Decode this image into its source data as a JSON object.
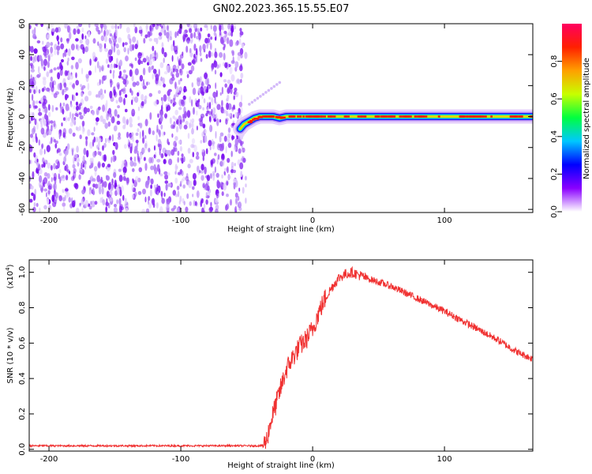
{
  "title": "GN02.2023.365.15.55.E07",
  "colors": {
    "snr_line": "#f03030",
    "noise_purple": "#7a10f0",
    "axis": "#000000"
  },
  "chart_data": [
    {
      "type": "heatmap",
      "xlabel": "Height of straight line (km)",
      "ylabel": "Frequency (Hz)",
      "xlim": [
        -215,
        167
      ],
      "ylim": [
        -62,
        60
      ],
      "xticks": [
        -200,
        -100,
        0,
        100
      ],
      "yticks": [
        -60,
        -40,
        -20,
        0,
        20,
        40,
        60
      ],
      "xtick_labels": [
        "-200",
        "-100",
        "0",
        "100"
      ],
      "ytick_labels": [
        "-60",
        "-40",
        "-20",
        "0",
        "20",
        "40",
        "60"
      ],
      "noise_region_x": [
        -215,
        -53
      ],
      "signal_trace": {
        "x": [
          -55,
          -52,
          -48,
          -44,
          -40,
          -35,
          -30,
          -25,
          -20,
          -10,
          0,
          20,
          40,
          60,
          80,
          100,
          120,
          140,
          167
        ],
        "freq": [
          -8,
          -5,
          -3,
          -1,
          0,
          0,
          0,
          -1,
          0,
          0,
          0,
          0,
          0,
          0,
          0,
          0,
          0,
          0,
          0
        ]
      },
      "harmonic_trace": {
        "x": [
          -48,
          -25
        ],
        "freq": [
          8,
          22
        ]
      },
      "colorbar": {
        "label": "Normalized spectral amplitude",
        "range": [
          0,
          1
        ],
        "ticks": [
          0.0,
          0.2,
          0.4,
          0.6,
          0.8
        ],
        "tick_labels": [
          "0.0",
          "0.2",
          "0.4",
          "0.6",
          "0.8"
        ],
        "colormap": [
          "#ffffff",
          "#8a00ff",
          "#0000ff",
          "#00c8ff",
          "#00ff40",
          "#c8ff00",
          "#ffa000",
          "#ff2000",
          "#ff0060"
        ]
      }
    },
    {
      "type": "line",
      "xlabel": "Height of straight line (km)",
      "ylabel": "SNR (10 * v/v)",
      "scale_label": "(x10",
      "scale_exponent": "4",
      "scale_close": ")",
      "xlim": [
        -215,
        167
      ],
      "ylim": [
        -0.01,
        1.07
      ],
      "xticks": [
        -200,
        -100,
        0,
        100
      ],
      "yticks": [
        0.0,
        0.2,
        0.4,
        0.6,
        0.8,
        1.0
      ],
      "xtick_labels": [
        "-200",
        "-100",
        "0",
        "100"
      ],
      "ytick_labels": [
        "0.0",
        "0.2",
        "0.4",
        "0.6",
        "0.8",
        "1.0"
      ],
      "series": [
        {
          "x": [
            -215,
            -150,
            -100,
            -50,
            -38,
            -35,
            -32,
            -28,
            -24,
            -20,
            -15,
            -10,
            -5,
            0,
            5,
            10,
            15,
            20,
            25,
            30,
            40,
            60,
            80,
            100,
            120,
            140,
            155,
            167
          ],
          "y": [
            0.02,
            0.02,
            0.02,
            0.02,
            0.02,
            0.05,
            0.15,
            0.25,
            0.35,
            0.45,
            0.52,
            0.58,
            0.62,
            0.68,
            0.78,
            0.86,
            0.92,
            0.97,
            0.99,
            1.0,
            0.97,
            0.92,
            0.85,
            0.78,
            0.7,
            0.62,
            0.55,
            0.51
          ]
        }
      ]
    }
  ]
}
